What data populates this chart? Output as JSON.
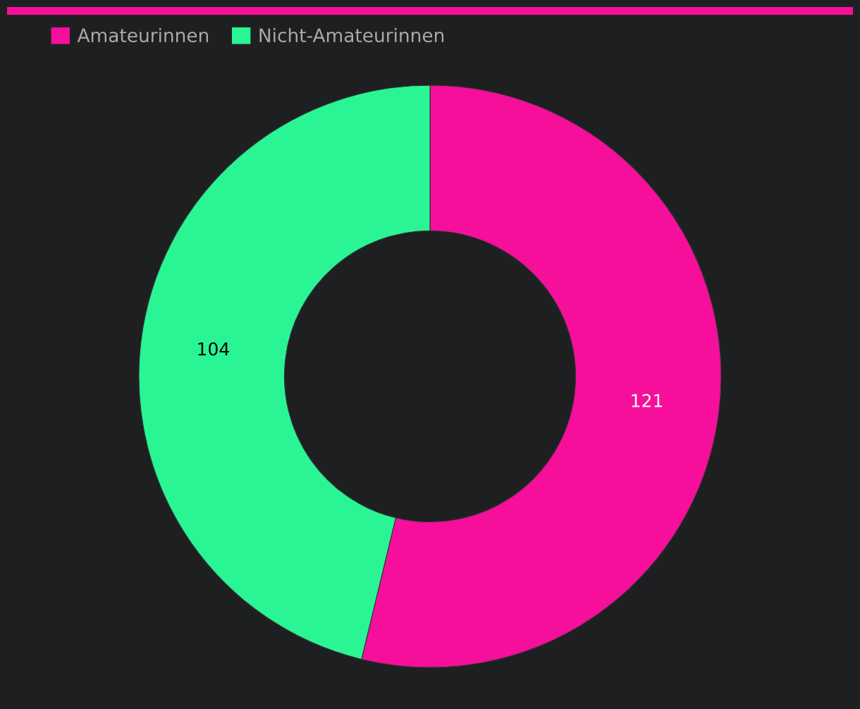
{
  "chart_data": {
    "type": "donut",
    "categories": [
      "Amateurinnen",
      "Nicht-Amateurinnen"
    ],
    "values": [
      121,
      104
    ],
    "colors": [
      "#f50f9a",
      "#29f595"
    ],
    "data_labels": true,
    "legend": "top left"
  }
}
